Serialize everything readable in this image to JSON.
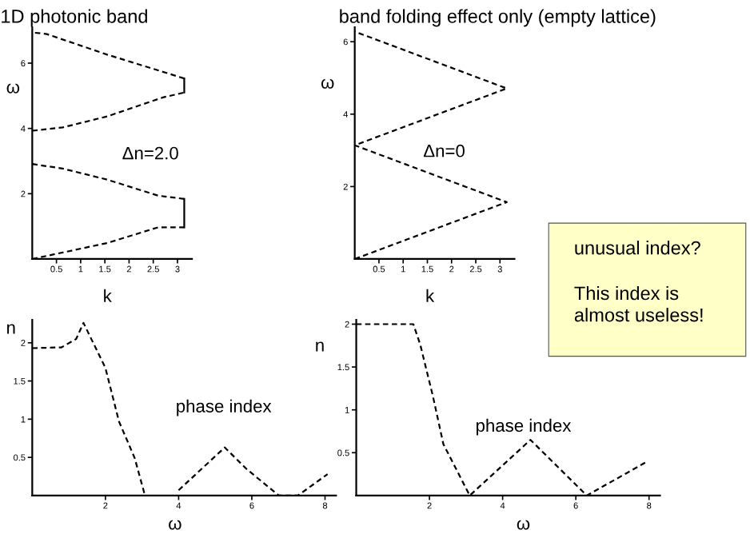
{
  "chart_data": [
    {
      "type": "line",
      "title": "1D photonic band",
      "xlabel": "k",
      "ylabel": "ω",
      "annotations": [
        "Δn=2.0"
      ],
      "xlim": [
        0,
        3.3
      ],
      "ylim": [
        0,
        7.1
      ],
      "xticks": [
        0.5,
        1,
        1.5,
        2,
        2.5,
        3
      ],
      "yticks": [
        2,
        4,
        6
      ],
      "grid": false,
      "legend": false,
      "series": [
        {
          "color": "#000000",
          "line_style": "dashed",
          "x": [
            0,
            1.55,
            2.6,
            3.14
          ],
          "values": [
            0,
            0.49,
            0.97,
            0.97
          ]
        },
        {
          "color": "#000000",
          "line_style": "solid",
          "x": [
            3.14,
            3.14
          ],
          "values": [
            0.97,
            1.84
          ]
        },
        {
          "color": "#000000",
          "line_style": "dashed",
          "x": [
            3.14,
            2.6,
            1.55,
            0.63,
            0
          ],
          "values": [
            1.84,
            1.94,
            2.43,
            2.77,
            2.91
          ]
        },
        {
          "color": "#000000",
          "line_style": "dashed",
          "x": [
            0,
            0.63,
            1.55,
            2.7,
            3.14
          ],
          "values": [
            3.93,
            4.03,
            4.37,
            4.95,
            5.1
          ]
        },
        {
          "color": "#000000",
          "line_style": "solid",
          "x": [
            3.14,
            3.14
          ],
          "values": [
            5.1,
            5.53
          ]
        },
        {
          "color": "#000000",
          "line_style": "dashed",
          "x": [
            3.14,
            2.6,
            1.55,
            0.3,
            0
          ],
          "values": [
            5.53,
            5.78,
            6.26,
            6.89,
            6.94
          ]
        }
      ]
    },
    {
      "type": "line",
      "title": "band folding effect only (empty lattice)",
      "xlabel": "k",
      "ylabel": "ω",
      "annotations": [
        "Δn=0"
      ],
      "xlim": [
        0,
        3.3
      ],
      "ylim": [
        0,
        6.4
      ],
      "xticks": [
        0.5,
        1,
        1.5,
        2,
        2.5,
        3
      ],
      "yticks": [
        2,
        4,
        6
      ],
      "grid": false,
      "legend": false,
      "series": [
        {
          "color": "#000000",
          "line_style": "dashed",
          "x": [
            0,
            3.14,
            0,
            3.14,
            0
          ],
          "values": [
            0,
            1.57,
            3.14,
            4.71,
            6.28
          ]
        }
      ]
    },
    {
      "type": "line",
      "xlabel": "ω",
      "ylabel": "n",
      "annotations": [
        "phase index"
      ],
      "xlim": [
        0,
        8.3
      ],
      "ylim": [
        0,
        2.3
      ],
      "xticks": [
        2,
        4,
        6,
        8
      ],
      "yticks": [
        0.5,
        1,
        1.5,
        2
      ],
      "grid": false,
      "legend": false,
      "series": [
        {
          "color": "#000000",
          "line_style": "dashed",
          "x": [
            0,
            0.8,
            1.2,
            1.4,
            2,
            2.37,
            2.8,
            3.08,
            3.5,
            4,
            5.26,
            5.85,
            6.74,
            7.26,
            8.07
          ],
          "values": [
            1.93,
            1.94,
            2.05,
            2.26,
            1.67,
            0.97,
            0.49,
            0,
            null,
            0.07,
            0.63,
            0.35,
            0,
            0,
            0.28
          ]
        }
      ]
    },
    {
      "type": "line",
      "xlabel": "ω",
      "ylabel": "n",
      "annotations": [
        "phase index"
      ],
      "xlim": [
        0,
        8.3
      ],
      "ylim": [
        0,
        2.05
      ],
      "xticks": [
        2,
        4,
        6,
        8
      ],
      "yticks": [
        0.5,
        1,
        1.5,
        2
      ],
      "grid": false,
      "legend": false,
      "series": [
        {
          "color": "#000000",
          "line_style": "dashed",
          "x": [
            0,
            1.56,
            1.75,
            2.1,
            2.38,
            2.67,
            3.1,
            4.76,
            6.3,
            7.96
          ],
          "values": [
            2,
            2,
            1.76,
            1.15,
            0.6,
            0.36,
            0,
            0.65,
            0,
            0.4
          ]
        }
      ]
    },
    {
      "type": "other",
      "annotations": [
        "unusual index?",
        "This index is\nalmost useless!"
      ]
    }
  ]
}
